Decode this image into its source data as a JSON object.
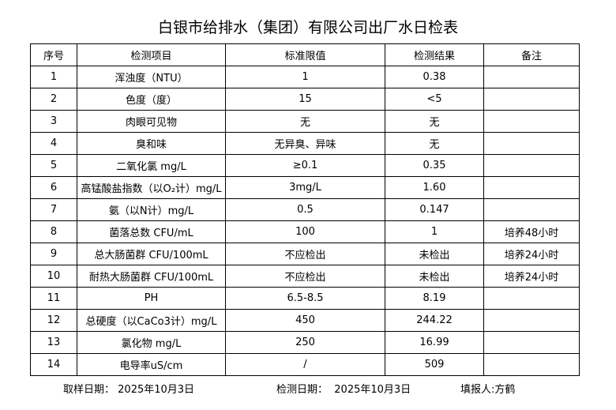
{
  "title": "白银市给排水（集团）有限公司出厂水日检表",
  "table": {
    "headers": [
      "序号",
      "检测项目",
      "标准限值",
      "检测结果",
      "备注"
    ],
    "rows": [
      [
        "1",
        "浑浊度（NTU）",
        "1",
        "0.38"
      ],
      [
        "2",
        "色度（度）",
        "15",
        "<5"
      ],
      [
        "3",
        "肉眼可见物",
        "无",
        "无"
      ],
      [
        "4",
        "臭和味",
        "无异臭、异味",
        "无"
      ],
      [
        "5",
        "二氧化氯 mg/L",
        "≥0.1",
        "0.35"
      ],
      [
        "6",
        "高锰酸盐指数（以O₂计）mg/L",
        "3mg/L",
        "1.60"
      ],
      [
        "7",
        "氨（以N计）mg/L",
        "0.5",
        "0.147"
      ],
      [
        "8",
        "菌落总数 CFU/mL",
        "100",
        "1",
        "培养48小时"
      ],
      [
        "9",
        "总大肠菌群 CFU/100mL",
        "不应检出",
        "未检出",
        "培养24小时"
      ],
      [
        "10",
        "耐热大肠菌群 CFU/100mL",
        "不应检出",
        "未检出",
        "培养24小时"
      ],
      [
        "11",
        "PH",
        "6.5-8.5",
        "8.19"
      ],
      [
        "12",
        "总硬度（以CaCo3计）mg/L",
        "450",
        "244.22"
      ],
      [
        "13",
        "氯化物 mg/L",
        "250",
        "16.99"
      ],
      [
        "14",
        "电导率uS/cm",
        "/",
        "509"
      ]
    ]
  },
  "footer": {
    "sampling_label": "取样日期：",
    "sampling_date": "2025年10月3日",
    "testing_label": "检测日期：",
    "testing_date": "2025年10月3日",
    "reporter": "填报人:方鹤"
  }
}
